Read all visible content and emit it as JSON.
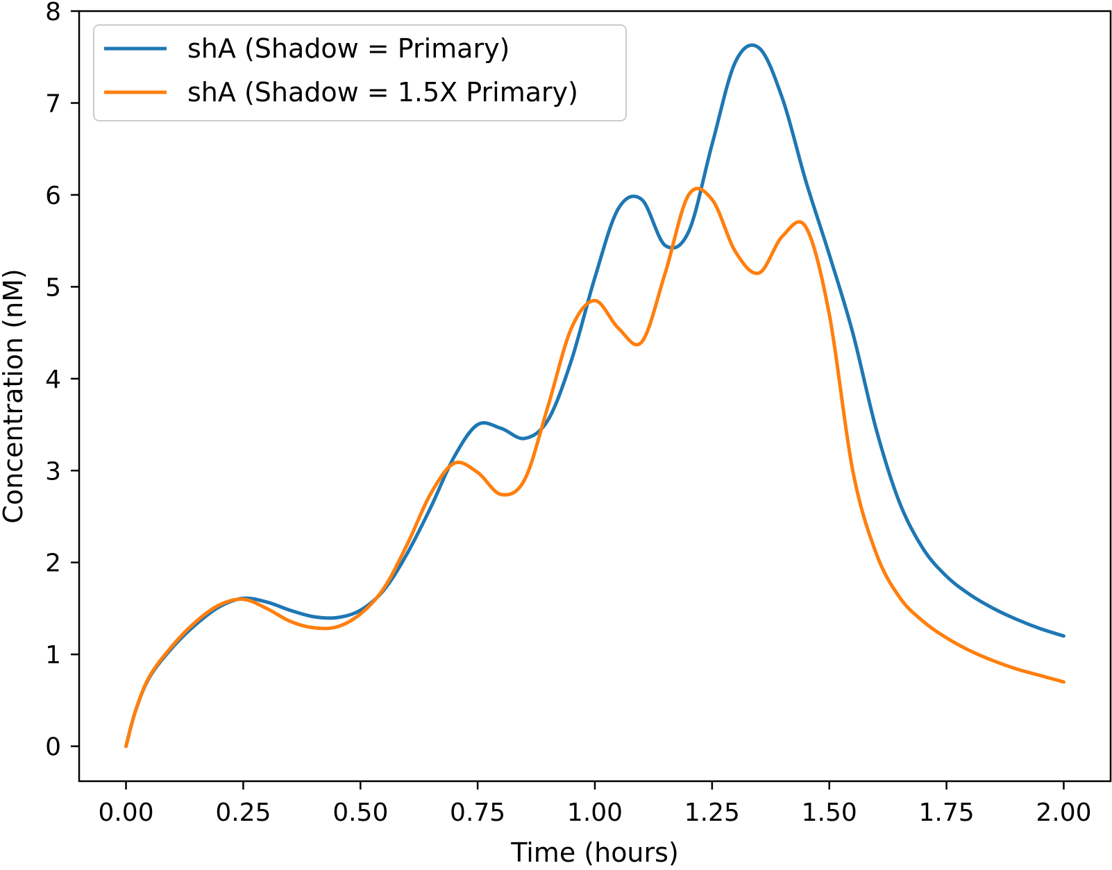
{
  "chart_data": {
    "type": "line",
    "xlabel": "Time (hours)",
    "ylabel": "Concentration (nM)",
    "xlim": [
      -0.1,
      2.1
    ],
    "ylim": [
      -0.38,
      8.0
    ],
    "x_ticks": [
      0.0,
      0.25,
      0.5,
      0.75,
      1.0,
      1.25,
      1.5,
      1.75,
      2.0
    ],
    "x_tick_labels": [
      "0.00",
      "0.25",
      "0.50",
      "0.75",
      "1.00",
      "1.25",
      "1.50",
      "1.75",
      "2.00"
    ],
    "y_ticks": [
      0,
      1,
      2,
      3,
      4,
      5,
      6,
      7,
      8
    ],
    "y_tick_labels": [
      "0",
      "1",
      "2",
      "3",
      "4",
      "5",
      "6",
      "7",
      "8"
    ],
    "grid": false,
    "legend_position": "top-left",
    "series": [
      {
        "name": "shA (Shadow = Primary)",
        "color": "#1f77b4",
        "x": [
          0.0,
          0.02,
          0.05,
          0.1,
          0.15,
          0.2,
          0.25,
          0.3,
          0.35,
          0.4,
          0.45,
          0.5,
          0.55,
          0.6,
          0.65,
          0.7,
          0.75,
          0.8,
          0.85,
          0.9,
          0.95,
          1.0,
          1.05,
          1.1,
          1.15,
          1.2,
          1.25,
          1.3,
          1.35,
          1.4,
          1.45,
          1.5,
          1.55,
          1.6,
          1.65,
          1.7,
          1.75,
          1.8,
          1.85,
          1.9,
          1.95,
          2.0
        ],
        "y": [
          0.0,
          0.38,
          0.75,
          1.08,
          1.33,
          1.52,
          1.61,
          1.57,
          1.48,
          1.41,
          1.4,
          1.48,
          1.7,
          2.1,
          2.6,
          3.15,
          3.5,
          3.46,
          3.35,
          3.55,
          4.2,
          5.1,
          5.85,
          5.95,
          5.45,
          5.6,
          6.55,
          7.45,
          7.6,
          7.05,
          6.15,
          5.35,
          4.5,
          3.45,
          2.65,
          2.15,
          1.85,
          1.65,
          1.5,
          1.38,
          1.28,
          1.2
        ]
      },
      {
        "name": "shA (Shadow = 1.5X Primary)",
        "color": "#ff7f0e",
        "x": [
          0.0,
          0.02,
          0.05,
          0.1,
          0.15,
          0.2,
          0.25,
          0.3,
          0.35,
          0.4,
          0.45,
          0.5,
          0.55,
          0.6,
          0.65,
          0.7,
          0.75,
          0.8,
          0.85,
          0.9,
          0.95,
          1.0,
          1.05,
          1.1,
          1.15,
          1.2,
          1.25,
          1.3,
          1.35,
          1.4,
          1.45,
          1.5,
          1.55,
          1.6,
          1.65,
          1.7,
          1.75,
          1.8,
          1.85,
          1.9,
          1.95,
          2.0
        ],
        "y": [
          0.0,
          0.38,
          0.76,
          1.1,
          1.36,
          1.54,
          1.6,
          1.5,
          1.36,
          1.29,
          1.3,
          1.44,
          1.72,
          2.2,
          2.75,
          3.08,
          2.98,
          2.74,
          2.9,
          3.7,
          4.55,
          4.85,
          4.55,
          4.4,
          5.15,
          6.0,
          5.95,
          5.38,
          5.15,
          5.55,
          5.65,
          4.7,
          3.0,
          2.1,
          1.62,
          1.36,
          1.18,
          1.04,
          0.93,
          0.84,
          0.77,
          0.7
        ]
      }
    ]
  }
}
